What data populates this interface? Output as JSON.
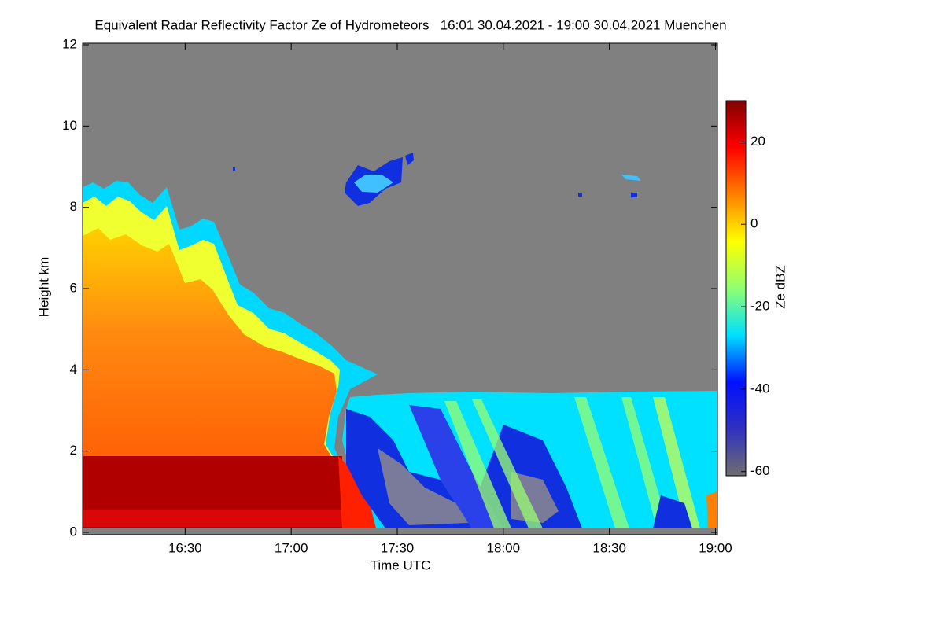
{
  "chart_data": {
    "type": "heatmap",
    "title": "Equivalent Radar Reflectivity Factor Ze of Hydrometeors   16:01 30.04.2021 - 19:00 30.04.2021 Muenchen",
    "xlabel": "Time UTC",
    "ylabel": "Height km",
    "colorbar_label": "Ze dBZ",
    "xlim": [
      961,
      1140
    ],
    "xticks": [
      {
        "value": 990,
        "label": "16:30"
      },
      {
        "value": 1020,
        "label": "17:00"
      },
      {
        "value": 1050,
        "label": "17:30"
      },
      {
        "value": 1080,
        "label": "18:00"
      },
      {
        "value": 1110,
        "label": "18:30"
      },
      {
        "value": 1140,
        "label": "19:00"
      }
    ],
    "ylim": [
      0,
      12
    ],
    "yticks": [
      0,
      2,
      4,
      6,
      8,
      10,
      12
    ],
    "clim": [
      -61,
      30
    ],
    "cticks": [
      -60,
      -40,
      -20,
      0,
      20
    ],
    "colormap": [
      "#6e6e6e",
      "#3030c0",
      "#0010ff",
      "#00e0ff",
      "#90ff70",
      "#ffff00",
      "#ff8000",
      "#ff0000",
      "#800000"
    ]
  }
}
